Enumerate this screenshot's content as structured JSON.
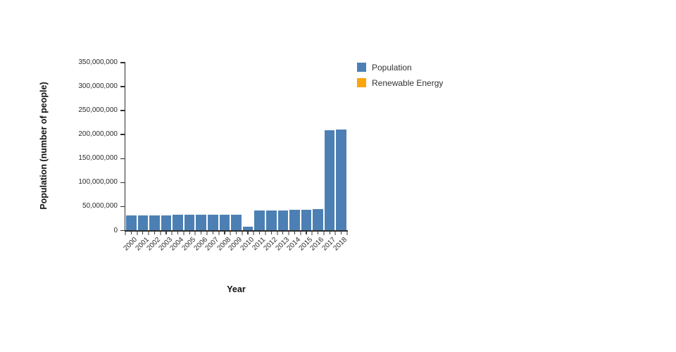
{
  "colors": {
    "population_bar": "#4c80b4",
    "renewable_swatch": "#fca40e",
    "axis_line": "#2e2e2e",
    "boundary_tick": "#9c9c9c",
    "center_tick": "#3a3a3a",
    "tick_text": "#2b2b2b"
  },
  "chart_data": {
    "type": "bar",
    "title": "",
    "xlabel": "Year",
    "ylabel": "Population (number of people)",
    "categories": [
      "2000",
      "2001",
      "2002",
      "2003",
      "2004",
      "2005",
      "2006",
      "2007",
      "2008",
      "2009",
      "2010",
      "2011",
      "2012",
      "2013",
      "2014",
      "2015",
      "2016",
      "2017",
      "2018"
    ],
    "series": [
      {
        "name": "Population",
        "color": "#4c80b4",
        "values": [
          31100000,
          31400000,
          31700000,
          32000000,
          32300000,
          32600000,
          32900000,
          33200000,
          33500000,
          33700000,
          8400000,
          41300000,
          41900000,
          42500000,
          43100000,
          43700000,
          44300000,
          209500000,
          211000000
        ]
      },
      {
        "name": "Renewable Energy",
        "color": "#fca40e",
        "values": []
      }
    ],
    "ylim": [
      0,
      350000000
    ],
    "yticks": [
      0,
      50000000,
      100000000,
      150000000,
      200000000,
      250000000,
      300000000,
      350000000
    ],
    "grid": false,
    "legend_position": "outside-upper-right",
    "xtick_rotation_deg": 45
  }
}
